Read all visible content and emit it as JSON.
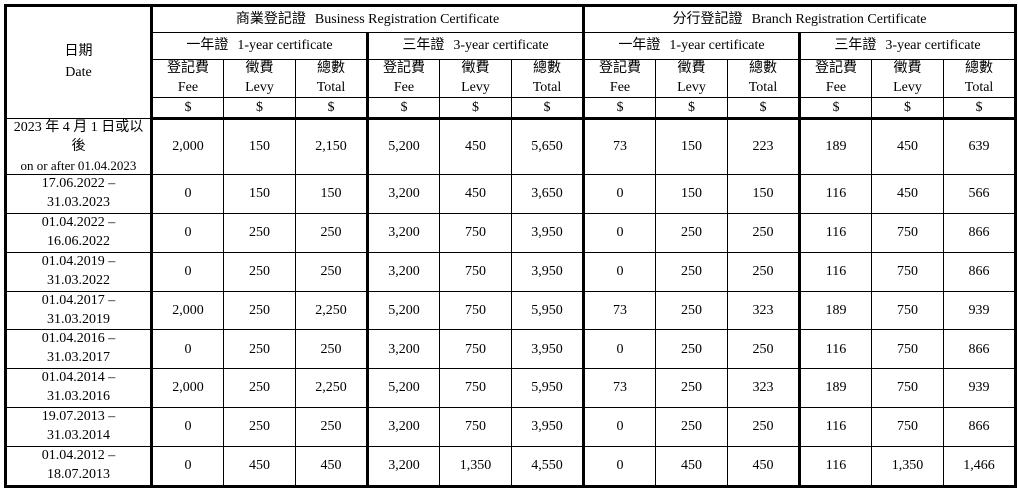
{
  "table": {
    "date_header": {
      "zh": "日期",
      "en": "Date"
    },
    "currency": "$",
    "sections": [
      {
        "zh": "商業登記證",
        "en": "Business Registration Certificate"
      },
      {
        "zh": "分行登記證",
        "en": "Branch Registration Certificate"
      }
    ],
    "cert_headers": [
      {
        "zh": "一年證",
        "en": "1-year certificate"
      },
      {
        "zh": "三年證",
        "en": "3-year certificate"
      }
    ],
    "col_headers": [
      {
        "zh": "登記費",
        "en": "Fee"
      },
      {
        "zh": "徵費",
        "en": "Levy"
      },
      {
        "zh": "總數",
        "en": "Total"
      }
    ],
    "rows": [
      {
        "date_lines": [
          "2023 年 4 月 1 日或以後",
          "on or after 01.04.2023"
        ],
        "values": [
          "2,000",
          "150",
          "2,150",
          "5,200",
          "450",
          "5,650",
          "73",
          "150",
          "223",
          "189",
          "450",
          "639"
        ]
      },
      {
        "date_lines": [
          "17.06.2022 – 31.03.2023"
        ],
        "values": [
          "0",
          "150",
          "150",
          "3,200",
          "450",
          "3,650",
          "0",
          "150",
          "150",
          "116",
          "450",
          "566"
        ]
      },
      {
        "date_lines": [
          "01.04.2022 – 16.06.2022"
        ],
        "values": [
          "0",
          "250",
          "250",
          "3,200",
          "750",
          "3,950",
          "0",
          "250",
          "250",
          "116",
          "750",
          "866"
        ]
      },
      {
        "date_lines": [
          "01.04.2019 – 31.03.2022"
        ],
        "values": [
          "0",
          "250",
          "250",
          "3,200",
          "750",
          "3,950",
          "0",
          "250",
          "250",
          "116",
          "750",
          "866"
        ]
      },
      {
        "date_lines": [
          "01.04.2017 – 31.03.2019"
        ],
        "values": [
          "2,000",
          "250",
          "2,250",
          "5,200",
          "750",
          "5,950",
          "73",
          "250",
          "323",
          "189",
          "750",
          "939"
        ]
      },
      {
        "date_lines": [
          "01.04.2016 – 31.03.2017"
        ],
        "values": [
          "0",
          "250",
          "250",
          "3,200",
          "750",
          "3,950",
          "0",
          "250",
          "250",
          "116",
          "750",
          "866"
        ]
      },
      {
        "date_lines": [
          "01.04.2014 – 31.03.2016"
        ],
        "values": [
          "2,000",
          "250",
          "2,250",
          "5,200",
          "750",
          "5,950",
          "73",
          "250",
          "323",
          "189",
          "750",
          "939"
        ]
      },
      {
        "date_lines": [
          "19.07.2013 – 31.03.2014"
        ],
        "values": [
          "0",
          "250",
          "250",
          "3,200",
          "750",
          "3,950",
          "0",
          "250",
          "250",
          "116",
          "750",
          "866"
        ]
      },
      {
        "date_lines": [
          "01.04.2012 – 18.07.2013"
        ],
        "values": [
          "0",
          "450",
          "450",
          "3,200",
          "1,350",
          "4,550",
          "0",
          "450",
          "450",
          "116",
          "1,350",
          "1,466"
        ]
      }
    ]
  }
}
